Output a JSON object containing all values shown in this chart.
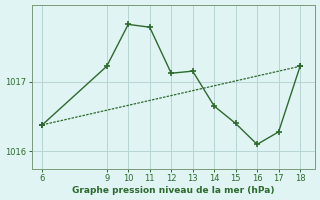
{
  "line1_x": [
    6,
    9,
    10,
    11,
    12,
    13,
    14,
    15,
    16,
    17,
    18
  ],
  "line1_y": [
    1016.38,
    1017.22,
    1017.82,
    1017.78,
    1017.12,
    1017.15,
    1016.65,
    1016.4,
    1016.1,
    1016.28,
    1017.22
  ],
  "line2_x": [
    6,
    18
  ],
  "line2_y": [
    1016.38,
    1017.22
  ],
  "line_color": "#2d6a2d",
  "bg_color": "#e0f4f4",
  "grid_color": "#b8d4d4",
  "xlabel": "Graphe pression niveau de la mer (hPa)",
  "xlabel_color": "#2d6a2d",
  "yticks": [
    1016,
    1017
  ],
  "xticks": [
    6,
    9,
    10,
    11,
    12,
    13,
    14,
    15,
    16,
    17,
    18
  ],
  "xlim": [
    5.5,
    18.7
  ],
  "ylim": [
    1015.75,
    1018.1
  ],
  "tick_color": "#2d6a2d",
  "axis_color": "#7a9a7a"
}
